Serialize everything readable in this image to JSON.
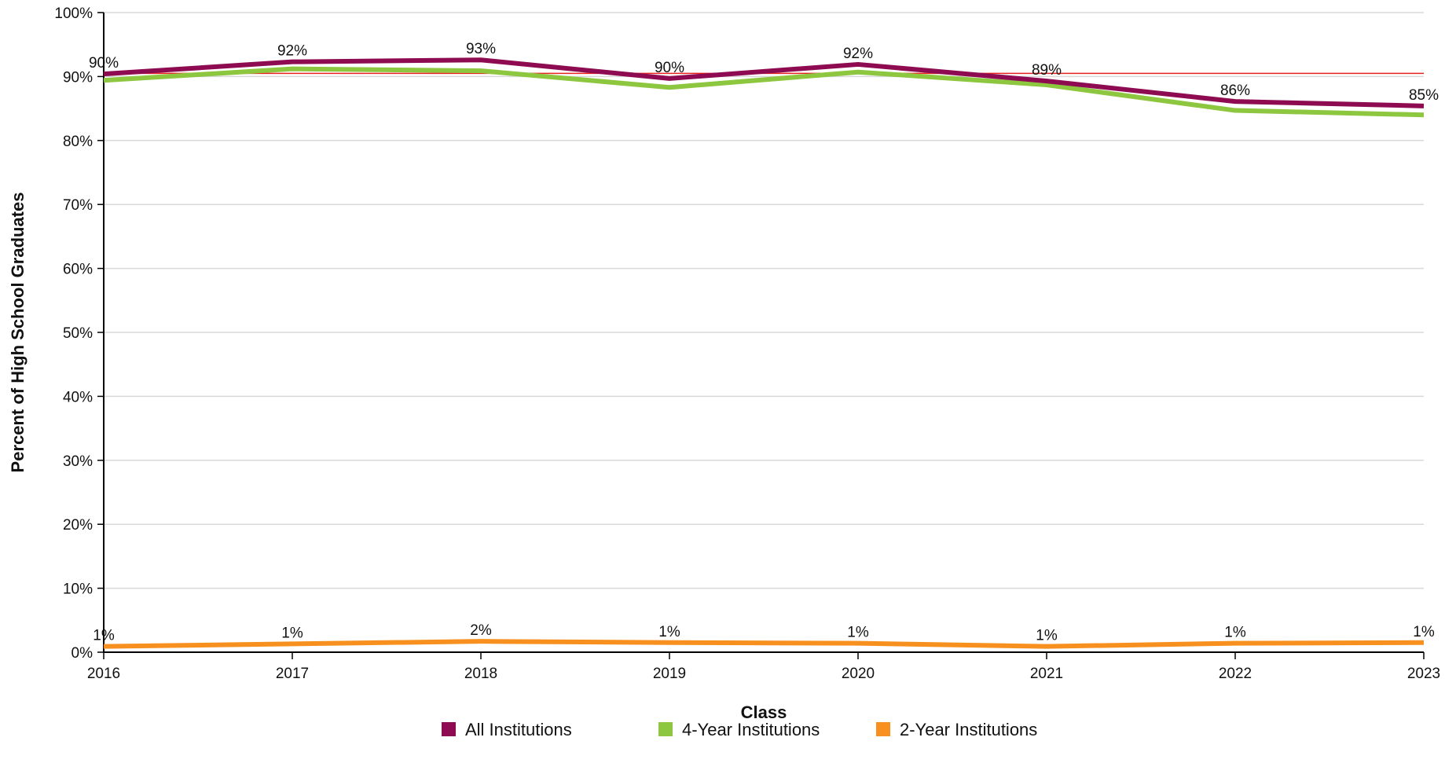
{
  "chart_data": {
    "type": "line",
    "title": "",
    "xlabel": "Class",
    "ylabel": "Percent of High School Graduates",
    "x": [
      "2016",
      "2017",
      "2018",
      "2019",
      "2020",
      "2021",
      "2022",
      "2023"
    ],
    "ylim": [
      0,
      100
    ],
    "yticks": [
      "0%",
      "10%",
      "20%",
      "30%",
      "40%",
      "50%",
      "60%",
      "70%",
      "80%",
      "90%",
      "100%"
    ],
    "grid": true,
    "legend_position": "bottom",
    "reference_line": {
      "value": 90.5,
      "color": "#e8211f"
    },
    "series": [
      {
        "name": "All Institutions",
        "color": "#8e0b52",
        "values": [
          90.4,
          92.3,
          92.6,
          89.7,
          91.9,
          89.3,
          86.1,
          85.4
        ],
        "labels": [
          "90%",
          "92%",
          "93%",
          "90%",
          "92%",
          "89%",
          "86%",
          "85%"
        ]
      },
      {
        "name": "4-Year Institutions",
        "color": "#8dc63f",
        "values": [
          89.4,
          91.2,
          90.9,
          88.3,
          90.7,
          88.7,
          84.7,
          84.0
        ],
        "labels": []
      },
      {
        "name": "2-Year Institutions",
        "color": "#f7901e",
        "values": [
          0.9,
          1.3,
          1.7,
          1.5,
          1.4,
          0.9,
          1.4,
          1.5
        ],
        "labels": [
          "1%",
          "1%",
          "2%",
          "1%",
          "1%",
          "1%",
          "1%",
          "1%"
        ]
      }
    ]
  }
}
